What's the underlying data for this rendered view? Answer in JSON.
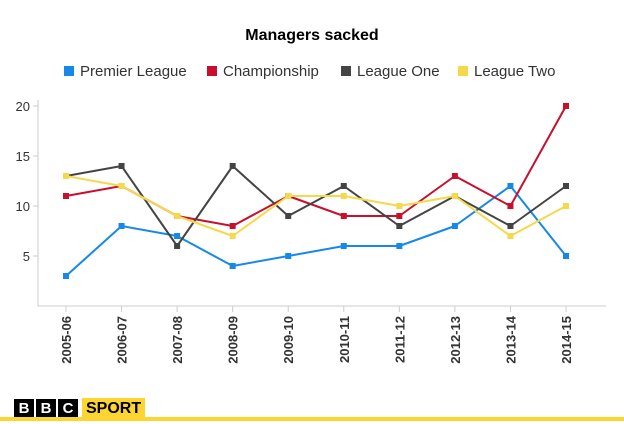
{
  "chart_data": {
    "type": "line",
    "title": "Managers sacked",
    "xlabel": "",
    "ylabel": "",
    "categories": [
      "2005-06",
      "2006-07",
      "2007-08",
      "2008-09",
      "2009-10",
      "2010-11",
      "2011-12",
      "2012-13",
      "2013-14",
      "2014-15"
    ],
    "y_ticks": [
      "5",
      "10",
      "15",
      "20"
    ],
    "ylim": [
      0,
      20
    ],
    "grid": false,
    "legend_position": "top",
    "series": [
      {
        "name": "Premier League",
        "color": "#1689e8",
        "values": [
          3,
          8,
          7,
          4,
          5,
          6,
          6,
          8,
          12,
          5
        ]
      },
      {
        "name": "Championship",
        "color": "#c8102e",
        "values": [
          11,
          12,
          9,
          8,
          11,
          9,
          9,
          13,
          10,
          20
        ]
      },
      {
        "name": "League One",
        "color": "#444444",
        "values": [
          13,
          14,
          6,
          14,
          9,
          12,
          8,
          11,
          8,
          12
        ]
      },
      {
        "name": "League Two",
        "color": "#f5d94a",
        "values": [
          13,
          12,
          9,
          7,
          11,
          11,
          10,
          11,
          7,
          10
        ]
      }
    ]
  },
  "branding": {
    "letters": [
      "B",
      "B",
      "C"
    ],
    "sport": "SPORT",
    "accent_color": "#fcd531"
  }
}
